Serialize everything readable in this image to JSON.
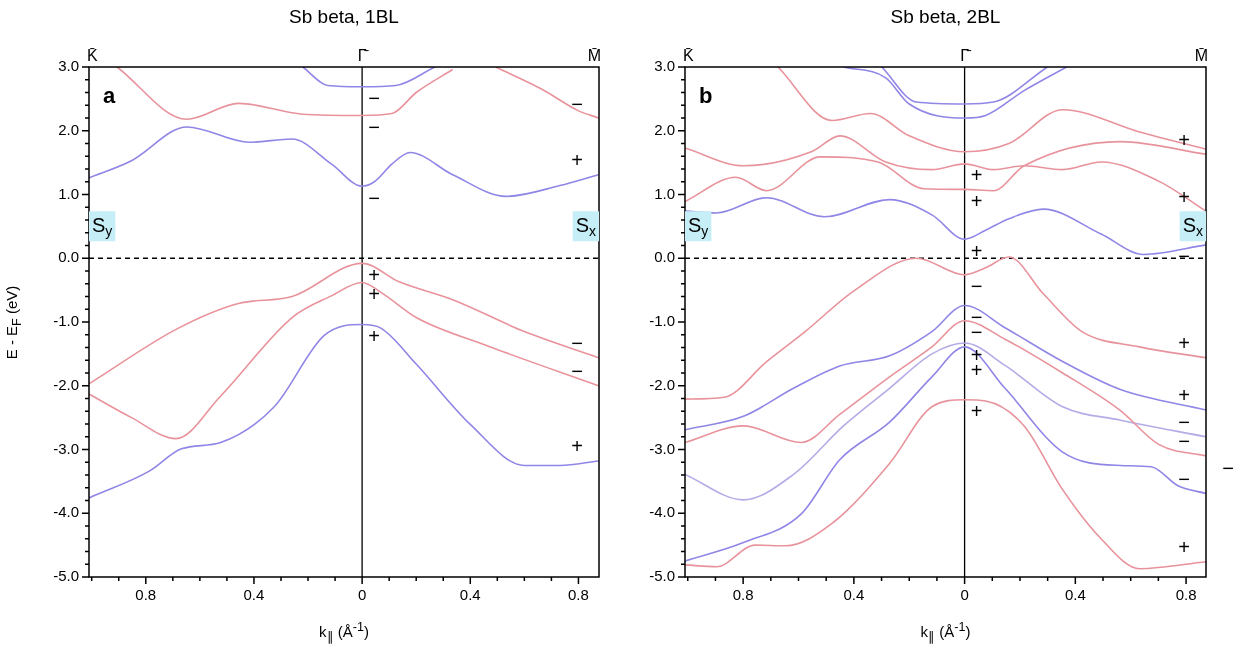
{
  "chart_data": [
    {
      "type": "line",
      "title": "Sb beta, 1BL",
      "xlabel": "k$_{∥}$ (Å$^{-1}$)",
      "ylabel": "E - E$_{F}$ (eV)",
      "marker": "none",
      "xlim": [
        -1.01,
        0.876
      ],
      "ylim": [
        -5,
        3
      ],
      "xticks": [
        {
          "value": -1.0,
          "label": null
        },
        {
          "value": -0.9,
          "label": null
        },
        {
          "value": -0.8,
          "label": "0.8"
        },
        {
          "value": -0.7,
          "label": null
        },
        {
          "value": -0.6,
          "label": null
        },
        {
          "value": -0.5,
          "label": null
        },
        {
          "value": -0.4,
          "label": "0.4"
        },
        {
          "value": -0.3,
          "label": null
        },
        {
          "value": -0.2,
          "label": null
        },
        {
          "value": -0.1,
          "label": null
        },
        0,
        {
          "value": 0.1,
          "label": null
        },
        {
          "value": 0.2,
          "label": null
        },
        {
          "value": 0.3,
          "label": null
        },
        0.4,
        {
          "value": 0.5,
          "label": null
        },
        {
          "value": 0.6,
          "label": null
        },
        {
          "value": 0.7,
          "label": null
        },
        0.8
      ],
      "yticks": [
        {
          "value": 3,
          "label": "3.0"
        },
        {
          "value": 2.8,
          "label": null
        },
        {
          "value": 2.6,
          "label": null
        },
        {
          "value": 2.4,
          "label": null
        },
        {
          "value": 2.2,
          "label": null
        },
        {
          "value": 2,
          "label": "2.0"
        },
        {
          "value": 1.8,
          "label": null
        },
        {
          "value": 1.6,
          "label": null
        },
        {
          "value": 1.4,
          "label": null
        },
        {
          "value": 1.2,
          "label": null
        },
        {
          "value": 1,
          "label": "1.0"
        },
        {
          "value": 0.8,
          "label": null
        },
        {
          "value": 0.6,
          "label": null
        },
        {
          "value": 0.4,
          "label": null
        },
        {
          "value": 0.2,
          "label": null
        },
        {
          "value": 0,
          "label": "0.0"
        },
        {
          "value": -0.2,
          "label": null
        },
        {
          "value": -0.4,
          "label": null
        },
        {
          "value": -0.6,
          "label": null
        },
        {
          "value": -0.8,
          "label": null
        },
        {
          "value": -1,
          "label": "-1.0"
        },
        {
          "value": -1.2,
          "label": null
        },
        {
          "value": -1.4,
          "label": null
        },
        {
          "value": -1.6,
          "label": null
        },
        {
          "value": -1.8,
          "label": null
        },
        {
          "value": -2,
          "label": "-2.0"
        },
        {
          "value": -2.2,
          "label": null
        },
        {
          "value": -2.4,
          "label": null
        },
        {
          "value": -2.6,
          "label": null
        },
        {
          "value": -2.8,
          "label": null
        },
        {
          "value": -3,
          "label": "-3.0"
        },
        {
          "value": -3.2,
          "label": null
        },
        {
          "value": -3.4,
          "label": null
        },
        {
          "value": -3.6,
          "label": null
        },
        {
          "value": -3.8,
          "label": null
        },
        {
          "value": -4,
          "label": "-4.0"
        },
        {
          "value": -4.2,
          "label": null
        },
        {
          "value": -4.4,
          "label": null
        },
        {
          "value": -4.6,
          "label": null
        },
        {
          "value": -4.8,
          "label": null
        },
        {
          "value": -5,
          "label": "-5.0"
        }
      ],
      "ref_lines": [
        {
          "axis": "x",
          "value": 0,
          "label": "Γ̄",
          "color": "#000000",
          "line_style": "solid"
        },
        {
          "axis": "y",
          "value": 0,
          "color": "#000000",
          "line_style": "dashed"
        }
      ],
      "annotations": [
        "a",
        "K̄",
        "M̄",
        "S$_{y}$",
        "S$_{x}$",
        {
          "text": "−",
          "x": 0,
          "y": 2.69
        },
        {
          "text": "−",
          "x": 0,
          "y": 2.24
        },
        {
          "text": "−",
          "x": 0.876,
          "y": 2.2
        },
        {
          "text": "−",
          "x": 0,
          "y": 1.13
        },
        {
          "text": "+",
          "x": 0.876,
          "y": 1.31
        },
        {
          "text": "+",
          "x": 0,
          "y": -0.08
        },
        {
          "text": "+",
          "x": 0,
          "y": -0.38
        },
        {
          "text": "+",
          "x": 0,
          "y": -1.04
        },
        {
          "text": "−",
          "x": 0.876,
          "y": -1.56
        },
        {
          "text": "−",
          "x": 0.876,
          "y": -2.0
        },
        {
          "text": "+",
          "x": 0.876,
          "y": -3.18
        }
      ],
      "series": [
        {
          "color": "#8f86e6",
          "x": [
            -0.219,
            -0.127,
            0,
            0.124,
            0.269
          ],
          "values": [
            3.0,
            2.71,
            2.69,
            2.71,
            3.0
          ]
        },
        {
          "color": "#e8939b",
          "x": [
            -0.906,
            -0.648,
            -0.457,
            -0.22,
            0,
            0.11,
            0.2,
            0.335
          ],
          "values": [
            3.0,
            2.18,
            2.43,
            2.26,
            2.24,
            2.27,
            2.6,
            2.96
          ]
        },
        {
          "color": "#e8939b",
          "x": [
            0.494,
            0.665,
            0.797,
            0.874
          ],
          "values": [
            3.0,
            2.65,
            2.32,
            2.2
          ]
        },
        {
          "color": "#8f86e6",
          "x": [
            -1.01,
            -0.853,
            -0.648,
            -0.417,
            -0.259,
            -0.114,
            0,
            0.045,
            0.111,
            0.177,
            0.335,
            0.533,
            0.731,
            0.874
          ],
          "values": [
            1.26,
            1.53,
            2.06,
            1.82,
            1.87,
            1.48,
            1.13,
            1.2,
            1.48,
            1.66,
            1.31,
            0.97,
            1.14,
            1.31
          ]
        },
        {
          "color": "#e8939b",
          "x": [
            -1.01,
            -0.681,
            -0.457,
            -0.259,
            0,
            0.137,
            0.335,
            0.6,
            0.874
          ],
          "values": [
            -1.97,
            -1.1,
            -0.71,
            -0.6,
            -0.08,
            -0.37,
            -0.65,
            -1.15,
            -1.56
          ]
        },
        {
          "color": "#e8939b",
          "x": [
            -1.01,
            -0.853,
            -0.688,
            -0.523,
            -0.259,
            -0.114,
            0,
            0.071,
            0.2,
            0.467,
            0.874
          ],
          "values": [
            -2.13,
            -2.5,
            -2.83,
            -2.16,
            -0.93,
            -0.59,
            -0.38,
            -0.54,
            -0.93,
            -1.38,
            -2.0
          ]
        },
        {
          "color": "#8f86e6",
          "x": [
            -1.01,
            -0.787,
            -0.668,
            -0.523,
            -0.325,
            -0.14,
            0,
            0.071,
            0.2,
            0.401,
            0.6,
            0.731,
            0.874
          ],
          "values": [
            -3.76,
            -3.34,
            -2.99,
            -2.89,
            -2.33,
            -1.21,
            -1.04,
            -1.1,
            -1.66,
            -2.61,
            -3.25,
            -3.25,
            -3.18
          ]
        }
      ]
    },
    {
      "type": "line",
      "title": "Sb beta, 2BL",
      "xlabel": "k$_{∥}$ (Å$^{-1}$)",
      "marker": "none",
      "xlim": [
        -1.01,
        0.872
      ],
      "ylim": [
        -5,
        3
      ],
      "xticks": [
        {
          "value": -1.0,
          "label": null
        },
        {
          "value": -0.9,
          "label": null
        },
        {
          "value": -0.8,
          "label": "0.8"
        },
        {
          "value": -0.7,
          "label": null
        },
        {
          "value": -0.6,
          "label": null
        },
        {
          "value": -0.5,
          "label": null
        },
        {
          "value": -0.4,
          "label": "0.4"
        },
        {
          "value": -0.3,
          "label": null
        },
        {
          "value": -0.2,
          "label": null
        },
        {
          "value": -0.1,
          "label": null
        },
        0,
        {
          "value": 0.1,
          "label": null
        },
        {
          "value": 0.2,
          "label": null
        },
        {
          "value": 0.3,
          "label": null
        },
        0.4,
        {
          "value": 0.5,
          "label": null
        },
        {
          "value": 0.6,
          "label": null
        },
        {
          "value": 0.7,
          "label": null
        },
        0.8
      ],
      "yticks": [
        {
          "value": 3,
          "label": "3.0"
        },
        {
          "value": 2.8,
          "label": null
        },
        {
          "value": 2.6,
          "label": null
        },
        {
          "value": 2.4,
          "label": null
        },
        {
          "value": 2.2,
          "label": null
        },
        {
          "value": 2,
          "label": "2.0"
        },
        {
          "value": 1.8,
          "label": null
        },
        {
          "value": 1.6,
          "label": null
        },
        {
          "value": 1.4,
          "label": null
        },
        {
          "value": 1.2,
          "label": null
        },
        {
          "value": 1,
          "label": "1.0"
        },
        {
          "value": 0.8,
          "label": null
        },
        {
          "value": 0.6,
          "label": null
        },
        {
          "value": 0.4,
          "label": null
        },
        {
          "value": 0.2,
          "label": null
        },
        {
          "value": 0,
          "label": "0.0"
        },
        {
          "value": -0.2,
          "label": null
        },
        {
          "value": -0.4,
          "label": null
        },
        {
          "value": -0.6,
          "label": null
        },
        {
          "value": -0.8,
          "label": null
        },
        {
          "value": -1,
          "label": "-1.0"
        },
        {
          "value": -1.2,
          "label": null
        },
        {
          "value": -1.4,
          "label": null
        },
        {
          "value": -1.6,
          "label": null
        },
        {
          "value": -1.8,
          "label": null
        },
        {
          "value": -2,
          "label": "-2.0"
        },
        {
          "value": -2.2,
          "label": null
        },
        {
          "value": -2.4,
          "label": null
        },
        {
          "value": -2.6,
          "label": null
        },
        {
          "value": -2.8,
          "label": null
        },
        {
          "value": -3,
          "label": "-3.0"
        },
        {
          "value": -3.2,
          "label": null
        },
        {
          "value": -3.4,
          "label": null
        },
        {
          "value": -3.6,
          "label": null
        },
        {
          "value": -3.8,
          "label": null
        },
        {
          "value": -4,
          "label": "-4.0"
        },
        {
          "value": -4.2,
          "label": null
        },
        {
          "value": -4.4,
          "label": null
        },
        {
          "value": -4.6,
          "label": null
        },
        {
          "value": -4.8,
          "label": null
        },
        {
          "value": -5,
          "label": "-5.0"
        }
      ],
      "ref_lines": [
        {
          "axis": "x",
          "value": 0,
          "label": "Γ̄",
          "color": "#000000",
          "line_style": "solid"
        },
        {
          "axis": "y",
          "value": 0,
          "color": "#000000",
          "line_style": "dashed"
        }
      ],
      "annotations": [
        "b",
        "K̄",
        "M̄",
        "S$_{y}$",
        "S$_{x}$",
        "−",
        {
          "text": "+",
          "x": 0,
          "y": 1.48
        },
        {
          "text": "+",
          "x": 0,
          "y": 1.08
        },
        {
          "text": "+",
          "x": 0,
          "y": 0.3
        },
        {
          "text": "−",
          "x": 0,
          "y": -0.26
        },
        {
          "text": "−",
          "x": 0,
          "y": -0.74
        },
        {
          "text": "−",
          "x": 0,
          "y": -0.98
        },
        {
          "text": "+",
          "x": 0,
          "y": -1.33
        },
        {
          "text": "+",
          "x": 0,
          "y": -1.39
        },
        {
          "text": "+",
          "x": 0,
          "y": -2.22
        },
        {
          "text": "+",
          "x": 0.872,
          "y": 1.63
        },
        {
          "text": "+",
          "x": 0.872,
          "y": 0.74
        },
        {
          "text": "−",
          "x": 0.872,
          "y": 0.21
        },
        {
          "text": "+",
          "x": 0.872,
          "y": -1.56
        },
        {
          "text": "+",
          "x": 0.872,
          "y": -2.38
        },
        {
          "text": "−",
          "x": 0.872,
          "y": -2.8
        },
        {
          "text": "−",
          "x": 0.872,
          "y": -3.1
        },
        {
          "text": "−",
          "x": 0.872,
          "y": -3.69
        },
        {
          "text": "+",
          "x": 0.872,
          "y": -4.76
        }
      ],
      "series": [
        {
          "color": "#8f86e6",
          "x": [
            -0.4375,
            -0.285,
            -0.2,
            0,
            0.076,
            0.215,
            0.368
          ],
          "values": [
            3.0,
            2.83,
            2.42,
            2.2,
            2.24,
            2.63,
            3.0
          ]
        },
        {
          "color": "#8f86e6",
          "x": [
            -0.299,
            -0.174,
            0,
            0.104,
            0.299
          ],
          "values": [
            3.0,
            2.45,
            2.42,
            2.45,
            3.0
          ]
        },
        {
          "color": "#e8939b",
          "x": [
            -0.674,
            -0.479,
            -0.34,
            -0.2,
            0,
            0.16,
            0.354,
            0.632,
            0.872
          ],
          "values": [
            3.0,
            2.16,
            2.27,
            1.92,
            1.67,
            1.8,
            2.33,
            1.98,
            1.71
          ]
        },
        {
          "color": "#e8939b",
          "x": [
            -1.01,
            -0.799,
            -0.549,
            -0.451,
            -0.285,
            -0.118,
            0,
            0.104,
            0.215,
            0.354,
            0.493,
            0.701,
            0.872
          ],
          "values": [
            1.73,
            1.45,
            1.68,
            1.92,
            1.51,
            1.39,
            1.48,
            1.39,
            1.45,
            1.39,
            1.51,
            1.21,
            0.74
          ]
        },
        {
          "color": "#e8939b",
          "x": [
            -1.01,
            -0.826,
            -0.715,
            -0.521,
            -0.313,
            -0.146,
            0,
            0.104,
            0.215,
            0.563,
            0.872
          ],
          "values": [
            0.89,
            1.27,
            1.06,
            1.59,
            1.51,
            1.09,
            1.08,
            1.06,
            1.45,
            1.83,
            1.63
          ]
        },
        {
          "color": "#8f86e6",
          "x": [
            -1.01,
            -0.896,
            -0.715,
            -0.507,
            -0.271,
            -0.118,
            0,
            0.076,
            0.16,
            0.285,
            0.493,
            0.646,
            0.872
          ],
          "values": [
            0.74,
            0.71,
            0.95,
            0.65,
            0.92,
            0.68,
            0.3,
            0.44,
            0.62,
            0.77,
            0.38,
            0.06,
            0.21
          ]
        },
        {
          "color": "#e8939b",
          "x": [
            -1.01,
            -0.868,
            -0.715,
            -0.576,
            -0.396,
            -0.174,
            0,
            0.076,
            0.16,
            0.285,
            0.424,
            0.632,
            0.872
          ],
          "values": [
            -2.21,
            -2.18,
            -1.62,
            -1.15,
            -0.5,
            0.0,
            -0.26,
            -0.15,
            0.02,
            -0.56,
            -1.15,
            -1.39,
            -1.56
          ]
        },
        {
          "color": "#8f86e6",
          "x": [
            -1.01,
            -0.799,
            -0.618,
            -0.451,
            -0.271,
            -0.118,
            0,
            0.146,
            0.354,
            0.563,
            0.872
          ],
          "values": [
            -2.69,
            -2.48,
            -2.04,
            -1.69,
            -1.53,
            -1.15,
            -0.74,
            -1.09,
            -1.62,
            -2.06,
            -2.38
          ]
        },
        {
          "color": "#e8939b",
          "x": [
            -1.01,
            -0.799,
            -0.59,
            -0.451,
            -0.271,
            -0.118,
            0,
            0.146,
            0.354,
            0.563,
            0.701,
            0.872
          ],
          "values": [
            -2.89,
            -2.63,
            -2.89,
            -2.45,
            -1.86,
            -1.39,
            -0.98,
            -1.27,
            -1.8,
            -2.39,
            -2.92,
            -3.1
          ]
        },
        {
          "color": "#b3ace6",
          "x": [
            -1.01,
            -0.799,
            -0.618,
            -0.4375,
            -0.271,
            -0.118,
            0,
            0.146,
            0.354,
            0.563,
            0.872
          ],
          "values": [
            -3.39,
            -3.79,
            -3.39,
            -2.63,
            -2.04,
            -1.5,
            -1.33,
            -1.68,
            -2.33,
            -2.54,
            -2.8
          ]
        },
        {
          "color": "#8f86e6",
          "x": [
            -1.01,
            -0.799,
            -0.59,
            -0.451,
            -0.271,
            -0.118,
            0,
            0.146,
            0.354,
            0.563,
            0.674,
            0.771,
            0.872
          ],
          "values": [
            -4.75,
            -4.46,
            -4.01,
            -3.16,
            -2.57,
            -1.86,
            -1.39,
            -2.04,
            -3.04,
            -3.25,
            -3.27,
            -3.57,
            -3.69
          ]
        },
        {
          "color": "#e8939b",
          "x": [
            -1.01,
            -0.896,
            -0.757,
            -0.646,
            -0.479,
            -0.271,
            -0.118,
            0,
            0.076,
            0.215,
            0.354,
            0.493,
            0.632,
            0.872
          ],
          "values": [
            -4.81,
            -4.84,
            -4.5,
            -4.51,
            -4.16,
            -3.22,
            -2.33,
            -2.22,
            -2.24,
            -2.63,
            -3.63,
            -4.4,
            -4.87,
            -4.76
          ]
        }
      ]
    }
  ]
}
